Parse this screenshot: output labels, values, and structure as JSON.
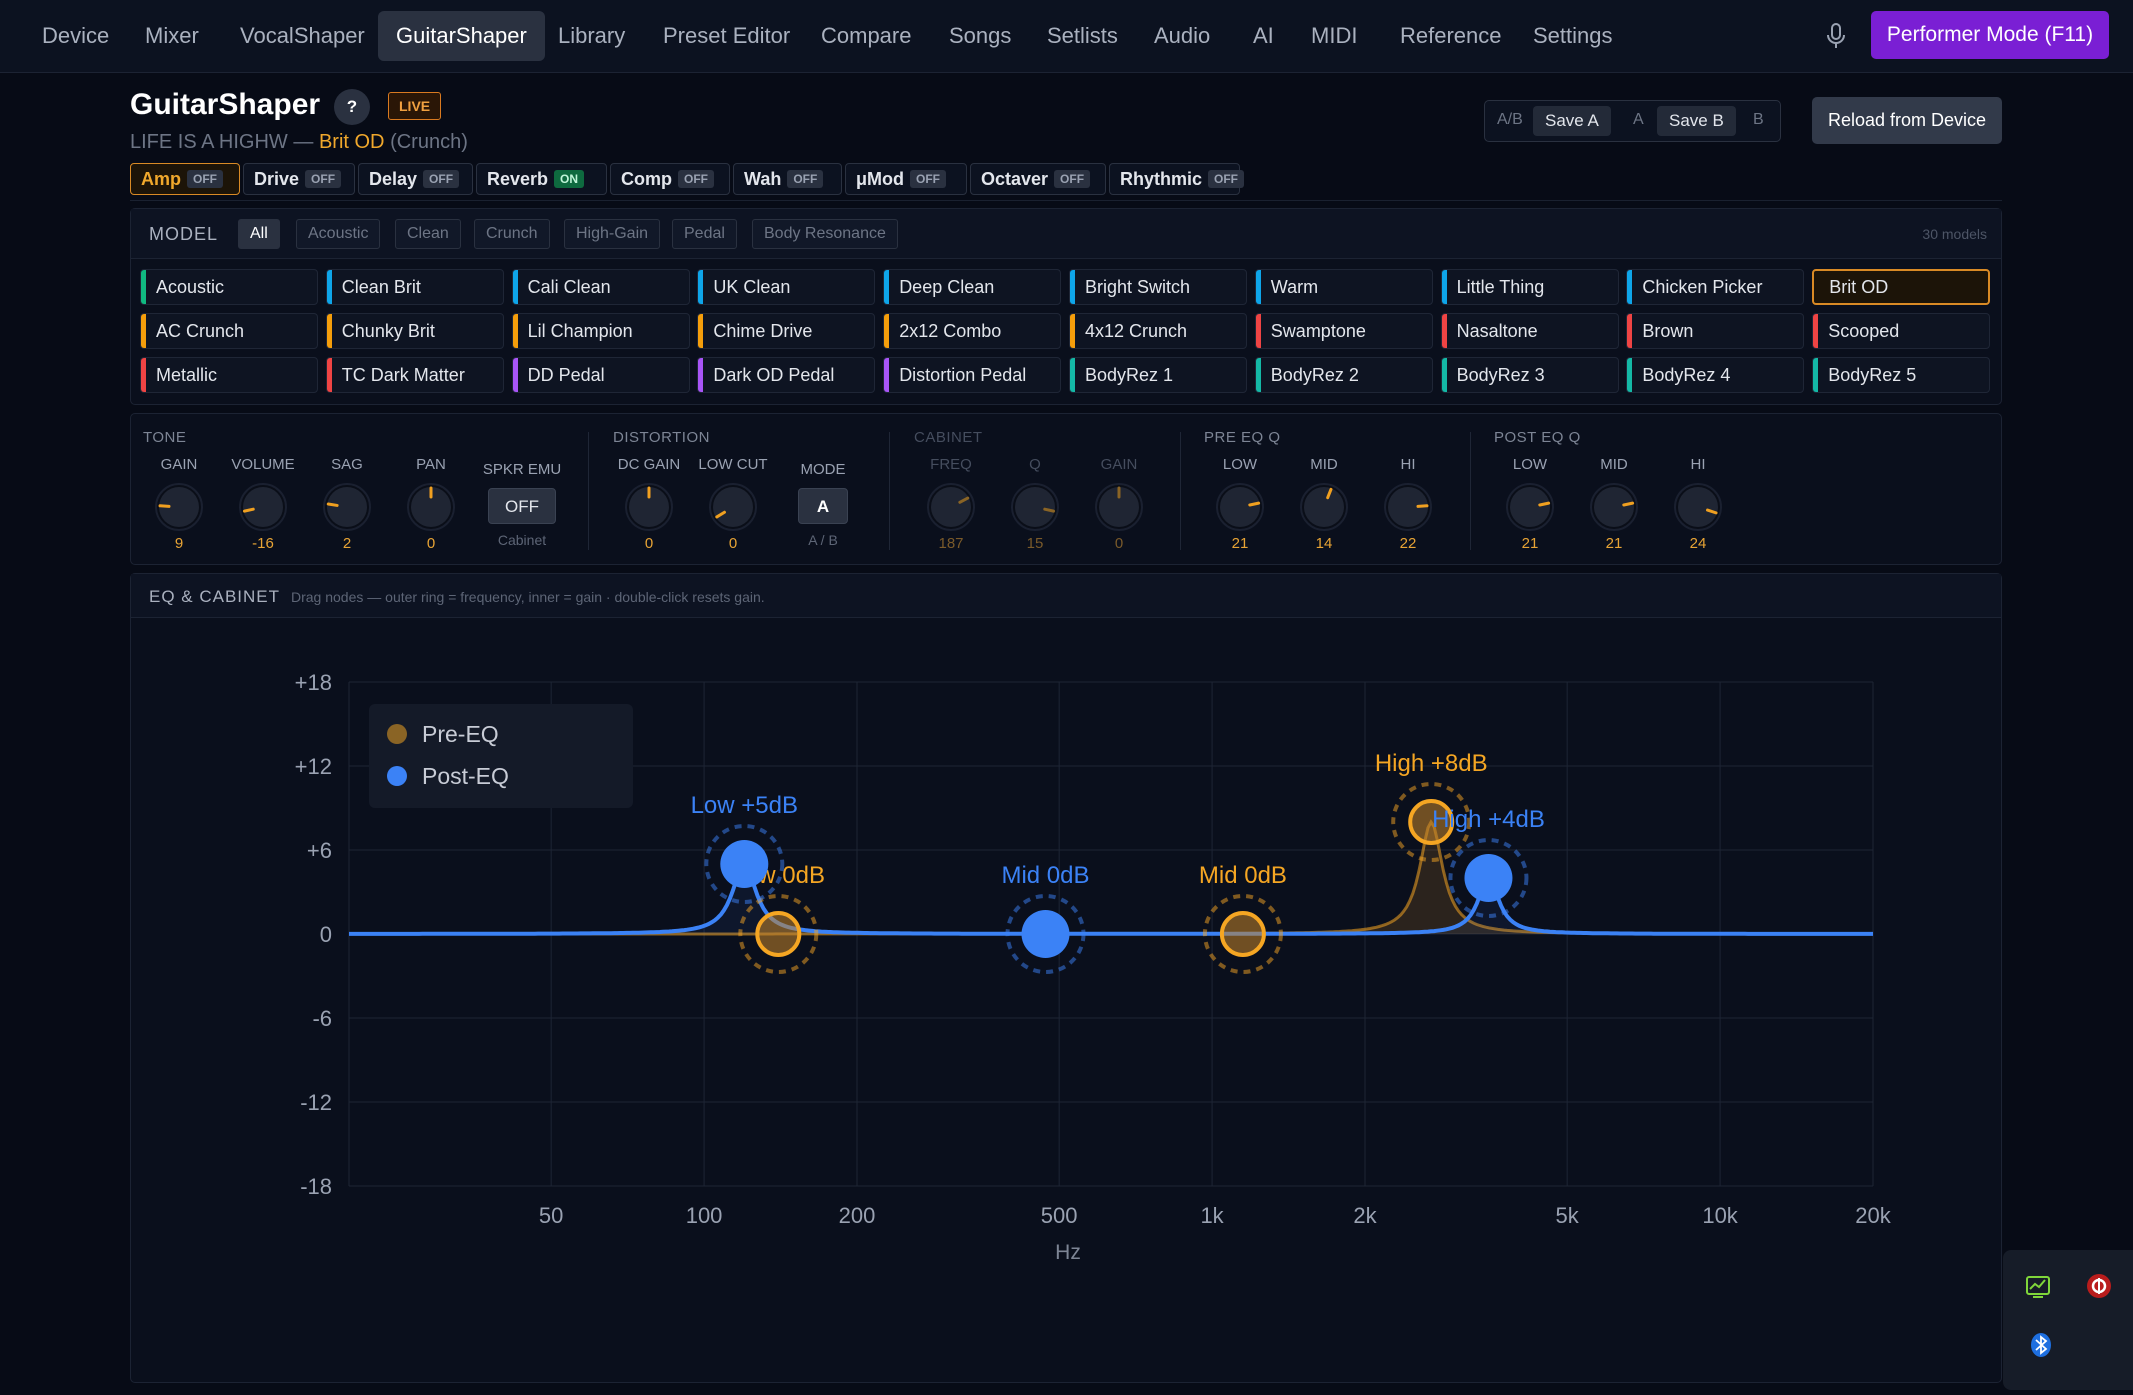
{
  "nav": {
    "tabs": [
      "Device",
      "Mixer",
      "VocalShaper",
      "GuitarShaper",
      "Library",
      "Preset Editor",
      "Compare",
      "Songs",
      "Setlists",
      "Audio",
      "AI",
      "MIDI",
      "Reference",
      "Settings"
    ],
    "active": "GuitarShaper",
    "mic_icon": "microphone-icon",
    "performer_label": "Performer Mode (F11)"
  },
  "header": {
    "title": "GuitarShaper",
    "help": "?",
    "live": "LIVE",
    "preset_name": "LIFE IS A HIGHW",
    "dash": "—",
    "amp_name": "Brit OD",
    "amp_category": "(Crunch)",
    "ab_label": "A/B",
    "save_a": "Save A",
    "a": "A",
    "save_b": "Save B",
    "b": "B",
    "reload": "Reload from Device"
  },
  "blocks": [
    {
      "name": "Amp",
      "state": "OFF"
    },
    {
      "name": "Drive",
      "state": "OFF"
    },
    {
      "name": "Delay",
      "state": "OFF"
    },
    {
      "name": "Reverb",
      "state": "ON"
    },
    {
      "name": "Comp",
      "state": "OFF"
    },
    {
      "name": "Wah",
      "state": "OFF"
    },
    {
      "name": "μMod",
      "state": "OFF"
    },
    {
      "name": "Octaver",
      "state": "OFF"
    },
    {
      "name": "Rhythmic",
      "state": "OFF"
    }
  ],
  "model": {
    "title": "MODEL",
    "filters": [
      "All",
      "Acoustic",
      "Clean",
      "Crunch",
      "High-Gain",
      "Pedal",
      "Body Resonance"
    ],
    "active_filter": "All",
    "count": "30 models",
    "selected": "Brit OD",
    "items": [
      {
        "name": "Acoustic",
        "color": "#10b981"
      },
      {
        "name": "Clean Brit",
        "color": "#0ea5e9"
      },
      {
        "name": "Cali Clean",
        "color": "#0ea5e9"
      },
      {
        "name": "UK Clean",
        "color": "#0ea5e9"
      },
      {
        "name": "Deep Clean",
        "color": "#0ea5e9"
      },
      {
        "name": "Bright Switch",
        "color": "#0ea5e9"
      },
      {
        "name": "Warm",
        "color": "#0ea5e9"
      },
      {
        "name": "Little Thing",
        "color": "#0ea5e9"
      },
      {
        "name": "Chicken Picker",
        "color": "#0ea5e9"
      },
      {
        "name": "Brit OD",
        "color": "#f59e0b"
      },
      {
        "name": "AC Crunch",
        "color": "#f59e0b"
      },
      {
        "name": "Chunky Brit",
        "color": "#f59e0b"
      },
      {
        "name": "Lil Champion",
        "color": "#f59e0b"
      },
      {
        "name": "Chime Drive",
        "color": "#f59e0b"
      },
      {
        "name": "2x12 Combo",
        "color": "#f59e0b"
      },
      {
        "name": "4x12 Crunch",
        "color": "#f59e0b"
      },
      {
        "name": "Swamptone",
        "color": "#ef4444"
      },
      {
        "name": "Nasaltone",
        "color": "#ef4444"
      },
      {
        "name": "Brown",
        "color": "#ef4444"
      },
      {
        "name": "Scooped",
        "color": "#ef4444"
      },
      {
        "name": "Metallic",
        "color": "#ef4444"
      },
      {
        "name": "TC Dark Matter",
        "color": "#ef4444"
      },
      {
        "name": "DD Pedal",
        "color": "#a855f7"
      },
      {
        "name": "Dark OD Pedal",
        "color": "#a855f7"
      },
      {
        "name": "Distortion Pedal",
        "color": "#a855f7"
      },
      {
        "name": "BodyRez 1",
        "color": "#14b8a6"
      },
      {
        "name": "BodyRez 2",
        "color": "#14b8a6"
      },
      {
        "name": "BodyRez 3",
        "color": "#14b8a6"
      },
      {
        "name": "BodyRez 4",
        "color": "#14b8a6"
      },
      {
        "name": "BodyRez 5",
        "color": "#14b8a6"
      }
    ]
  },
  "tone": {
    "title": "TONE",
    "knobs": [
      {
        "label": "GAIN",
        "value": "9",
        "pos": 0.18
      },
      {
        "label": "VOLUME",
        "value": "-16",
        "pos": 0.12
      },
      {
        "label": "SAG",
        "value": "2",
        "pos": 0.2
      },
      {
        "label": "PAN",
        "value": "0",
        "pos": 0.5
      }
    ],
    "spkr_label": "SPKR EMU",
    "spkr_value": "OFF",
    "spkr_sub": "Cabinet"
  },
  "distortion": {
    "title": "DISTORTION",
    "knobs": [
      {
        "label": "DC GAIN",
        "value": "0",
        "pos": 0.5
      },
      {
        "label": "LOW CUT",
        "value": "0",
        "pos": 0.05
      }
    ],
    "mode_label": "MODE",
    "mode_value": "A",
    "mode_sub": "A / B"
  },
  "cabinet": {
    "title": "CABINET",
    "knobs": [
      {
        "label": "FREQ",
        "value": "187",
        "pos": 0.73
      },
      {
        "label": "Q",
        "value": "15",
        "pos": 0.88
      },
      {
        "label": "GAIN",
        "value": "0",
        "pos": 0.5
      }
    ]
  },
  "pre_eq": {
    "title": "PRE EQ Q",
    "knobs": [
      {
        "label": "LOW",
        "value": "21",
        "pos": 0.79
      },
      {
        "label": "MID",
        "value": "14",
        "pos": 0.58
      },
      {
        "label": "HI",
        "value": "22",
        "pos": 0.82
      }
    ]
  },
  "post_eq": {
    "title": "POST EQ Q",
    "knobs": [
      {
        "label": "LOW",
        "value": "21",
        "pos": 0.79
      },
      {
        "label": "MID",
        "value": "21",
        "pos": 0.79
      },
      {
        "label": "HI",
        "value": "24",
        "pos": 0.9
      }
    ]
  },
  "eq": {
    "title": "EQ & CABINET",
    "hint": "Drag nodes — outer ring = frequency, inner = gain · double-click resets gain.",
    "xlabel": "Hz",
    "yticks": [
      "+18",
      "+12",
      "+6",
      "0",
      "-6",
      "-12",
      "-18"
    ],
    "xticks": [
      "50",
      "100",
      "200",
      "500",
      "1k",
      "2k",
      "5k",
      "10k",
      "20k"
    ],
    "legend": [
      "Pre-EQ",
      "Post-EQ"
    ]
  },
  "chart_data": {
    "type": "line",
    "xlabel": "Hz",
    "ylabel": "",
    "xscale": "log",
    "xlim": [
      20,
      20000
    ],
    "ylim": [
      -18,
      18
    ],
    "x_ticks": [
      "50",
      "100",
      "200",
      "500",
      "1k",
      "2k",
      "5k",
      "10k",
      "20k"
    ],
    "y_ticks": [
      "+18",
      "+12",
      "+6",
      "0",
      "-6",
      "-12",
      "-18"
    ],
    "grid": true,
    "legend_position": "top-left",
    "series": [
      {
        "name": "Pre-EQ",
        "color": "#f5a623",
        "nodes": [
          {
            "label": "Low 0dB",
            "freq": 140,
            "gain": 0,
            "q": 21
          },
          {
            "label": "Mid 0dB",
            "freq": 1150,
            "gain": 0,
            "q": 14
          },
          {
            "label": "High +8dB",
            "freq": 2700,
            "gain": 8,
            "q": 22
          }
        ]
      },
      {
        "name": "Post-EQ",
        "color": "#3b82f6",
        "nodes": [
          {
            "label": "Low +5dB",
            "freq": 120,
            "gain": 5,
            "q": 21
          },
          {
            "label": "Mid 0dB",
            "freq": 470,
            "gain": 0,
            "q": 21
          },
          {
            "label": "High +4dB",
            "freq": 3500,
            "gain": 4,
            "q": 24
          }
        ]
      }
    ]
  },
  "tray": {
    "icons": [
      "monitor-app-icon",
      "record-app-icon",
      "bluetooth-icon"
    ]
  }
}
